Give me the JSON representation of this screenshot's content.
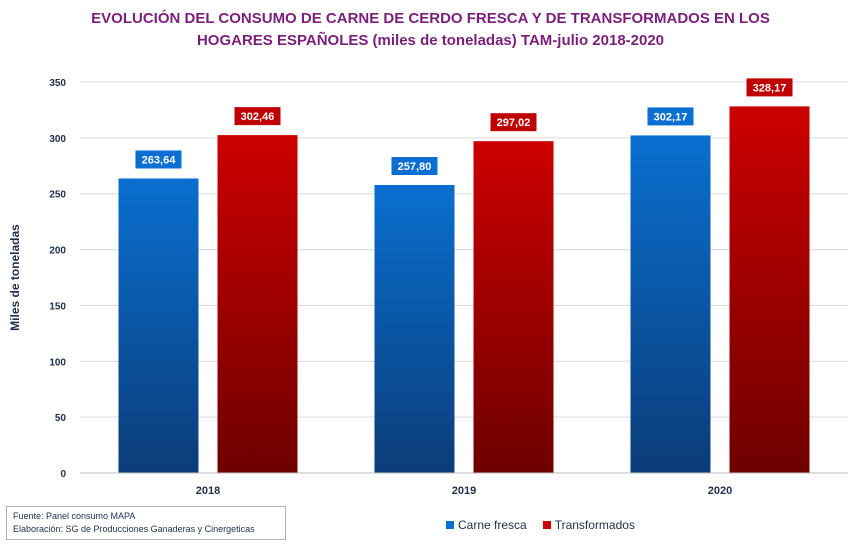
{
  "title_lines": [
    "EVOLUCIÓN DEL CONSUMO DE CARNE DE CERDO FRESCA Y DE TRANSFORMADOS EN LOS",
    "HOGARES ESPAÑOLES (miles de toneladas) TAM-julio 2018-2020"
  ],
  "source": {
    "line1": "Fuente: Panel consumo MAPA",
    "line2": "Elaboración: SG de Producciones Ganaderas y Cinergeticas"
  },
  "colors": {
    "title": "#7a1f7a",
    "carne_fresca_top": "#0a6fd0",
    "carne_fresca_bottom": "#0b3c78",
    "transformados_top": "#cc0000",
    "transformados_bottom": "#6e0000",
    "label_fresca_bg": "#0a6fd0",
    "label_transf_bg": "#c00000"
  },
  "chart_data": {
    "type": "bar",
    "title": "EVOLUCIÓN DEL CONSUMO DE CARNE DE CERDO FRESCA Y DE TRANSFORMADOS EN LOS HOGARES ESPAÑOLES (miles de toneladas) TAM-julio 2018-2020",
    "categories": [
      "2018",
      "2019",
      "2020"
    ],
    "series": [
      {
        "name": "Carne fresca",
        "values": [
          263.64,
          257.8,
          302.17
        ],
        "labels": [
          "263,64",
          "257,80",
          "302,17"
        ]
      },
      {
        "name": "Transformados",
        "values": [
          302.46,
          297.02,
          328.17
        ],
        "labels": [
          "302,46",
          "297,02",
          "328,17"
        ]
      }
    ],
    "xlabel": "",
    "ylabel": "Miles de toneladas",
    "ylim": [
      0,
      350
    ],
    "yticks": [
      "0",
      "50",
      "100",
      "150",
      "200",
      "250",
      "300",
      "350"
    ],
    "grid": true,
    "legend_position": "bottom"
  }
}
